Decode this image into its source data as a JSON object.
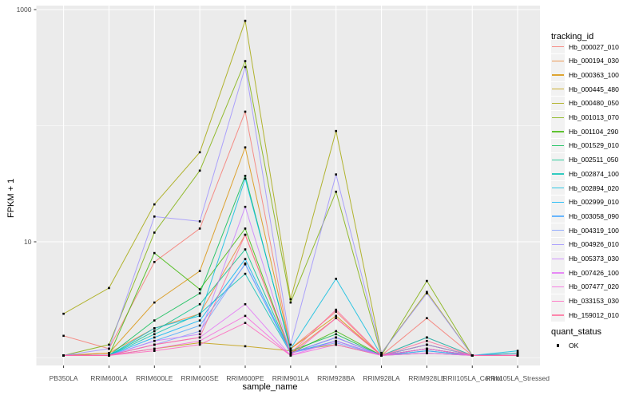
{
  "chart": {
    "y_axis": {
      "title": "FPKM + 1",
      "ticks": [
        {
          "value": 1000,
          "label": "1000"
        },
        {
          "value": 10,
          "label": "10"
        }
      ],
      "minor_values": [
        100,
        1
      ]
    },
    "x_axis": {
      "title": "sample_name"
    },
    "legend": {
      "tracking_title": "tracking_id",
      "quant_title": "quant_status",
      "quant_items": [
        {
          "label": "OK"
        }
      ]
    },
    "colors": {
      "panel_bg": "#EBEBEB",
      "grid": "#FFFFFF",
      "tick_text": "#4D4D4D",
      "tick_mark": "#333333",
      "point": "#000000"
    }
  },
  "chart_data": {
    "type": "line",
    "title": "",
    "xlabel": "sample_name",
    "ylabel": "FPKM + 1",
    "y_scale": "log10",
    "ylim": [
      1,
      1000
    ],
    "y_tick_labels": [
      "1000",
      "10"
    ],
    "grid": true,
    "legend_position": "right",
    "point_marker": "black-square",
    "x": [
      "PB350LA",
      "RRIM600LA",
      "RRIM600LE",
      "RRIM600SE",
      "RRIM600PE",
      "RRIM901LA",
      "RRIM928BA",
      "RRIM928LA",
      "RRIM928LE",
      "RRII105LA_Control",
      "RRII105LA_Stressed"
    ],
    "series": [
      {
        "name": "Hb_000027_010",
        "color": "#F8766D",
        "quant_status": "OK",
        "values": [
          1.55,
          1.2,
          6.7,
          13,
          132,
          1.2,
          2.5,
          1.05,
          2.2,
          1.05,
          1.05
        ]
      },
      {
        "name": "Hb_000194_030",
        "color": "#EA8331",
        "quant_status": "OK",
        "values": [
          1.05,
          1.1,
          1.8,
          2.4,
          11.5,
          1.1,
          2.2,
          1.05,
          1.3,
          1.05,
          1.05
        ]
      },
      {
        "name": "Hb_000363_100",
        "color": "#D89000",
        "quant_status": "OK",
        "values": [
          1.05,
          1.1,
          3.0,
          5.6,
          65,
          1.2,
          2.3,
          1.05,
          1.5,
          1.05,
          1.1
        ]
      },
      {
        "name": "Hb_000445_480",
        "color": "#C09B00",
        "quant_status": "OK",
        "values": [
          1.05,
          1.05,
          1.2,
          1.35,
          1.26,
          1.15,
          1.3,
          1.05,
          1.1,
          1.05,
          1.05
        ]
      },
      {
        "name": "Hb_000480_050",
        "color": "#A3A500",
        "quant_status": "OK",
        "values": [
          2.4,
          4.0,
          21,
          59,
          800,
          3.2,
          90,
          1.1,
          3.7,
          1.05,
          1.05
        ]
      },
      {
        "name": "Hb_001013_070",
        "color": "#7CAE00",
        "quant_status": "OK",
        "values": [
          1.05,
          1.3,
          12,
          41,
          360,
          3.0,
          27,
          1.05,
          4.6,
          1.05,
          1.05
        ]
      },
      {
        "name": "Hb_001104_290",
        "color": "#39B600",
        "quant_status": "OK",
        "values": [
          1.05,
          1.05,
          8.0,
          3.9,
          13,
          1.1,
          1.7,
          1.05,
          1.2,
          1.05,
          1.05
        ]
      },
      {
        "name": "Hb_001529_010",
        "color": "#00BB4E",
        "quant_status": "OK",
        "values": [
          1.05,
          1.05,
          2.1,
          3.6,
          37,
          1.15,
          1.6,
          1.05,
          1.3,
          1.05,
          1.05
        ]
      },
      {
        "name": "Hb_002511_050",
        "color": "#00C087",
        "quant_status": "OK",
        "values": [
          1.05,
          1.05,
          1.7,
          2.9,
          8.6,
          1.1,
          1.5,
          1.05,
          1.2,
          1.05,
          1.05
        ]
      },
      {
        "name": "Hb_002874_100",
        "color": "#00C0B3",
        "quant_status": "OK",
        "values": [
          1.05,
          1.05,
          1.6,
          2.4,
          5.3,
          1.1,
          1.4,
          1.05,
          1.15,
          1.05,
          1.05
        ]
      },
      {
        "name": "Hb_002894_020",
        "color": "#00BCE0",
        "quant_status": "OK",
        "values": [
          1.05,
          1.05,
          1.8,
          2.3,
          35,
          1.2,
          4.8,
          1.05,
          1.5,
          1.05,
          1.15
        ]
      },
      {
        "name": "Hb_002999_010",
        "color": "#00B2F5",
        "quant_status": "OK",
        "values": [
          1.05,
          1.05,
          1.5,
          2.1,
          7.1,
          1.1,
          1.5,
          1.05,
          1.2,
          1.05,
          1.1
        ]
      },
      {
        "name": "Hb_003058_090",
        "color": "#45A5FF",
        "quant_status": "OK",
        "values": [
          1.05,
          1.05,
          1.4,
          1.9,
          6.4,
          1.1,
          1.4,
          1.05,
          1.15,
          1.05,
          1.05
        ]
      },
      {
        "name": "Hb_004319_100",
        "color": "#7D9BFF",
        "quant_status": "OK",
        "values": [
          1.05,
          1.05,
          1.3,
          1.7,
          6.5,
          1.1,
          1.35,
          1.05,
          1.1,
          1.05,
          1.05
        ]
      },
      {
        "name": "Hb_004926_010",
        "color": "#9B8FFF",
        "quant_status": "OK",
        "values": [
          1.05,
          1.2,
          16.5,
          15,
          320,
          1.3,
          38,
          1.1,
          3.6,
          1.05,
          1.05
        ]
      },
      {
        "name": "Hb_005373_030",
        "color": "#C77CFF",
        "quant_status": "OK",
        "values": [
          1.05,
          1.05,
          1.4,
          1.6,
          20,
          1.1,
          1.5,
          1.05,
          1.3,
          1.05,
          1.05
        ]
      },
      {
        "name": "Hb_007426_100",
        "color": "#E36EF6",
        "quant_status": "OK",
        "values": [
          1.05,
          1.05,
          1.3,
          1.5,
          2.9,
          1.05,
          1.4,
          1.05,
          1.2,
          1.05,
          1.05
        ]
      },
      {
        "name": "Hb_007477_020",
        "color": "#F863DF",
        "quant_status": "OK",
        "values": [
          1.05,
          1.05,
          1.2,
          1.4,
          2.3,
          1.05,
          1.3,
          1.05,
          1.1,
          1.05,
          1.05
        ]
      },
      {
        "name": "Hb_033153_030",
        "color": "#FF62BC",
        "quant_status": "OK",
        "values": [
          1.05,
          1.05,
          1.15,
          1.3,
          2.0,
          1.05,
          2.2,
          1.05,
          1.2,
          1.05,
          1.05
        ]
      },
      {
        "name": "Hb_159012_010",
        "color": "#FF6A9A",
        "quant_status": "OK",
        "values": [
          1.05,
          1.05,
          1.3,
          1.5,
          11.5,
          1.1,
          2.6,
          1.05,
          1.4,
          1.05,
          1.05
        ]
      }
    ]
  }
}
